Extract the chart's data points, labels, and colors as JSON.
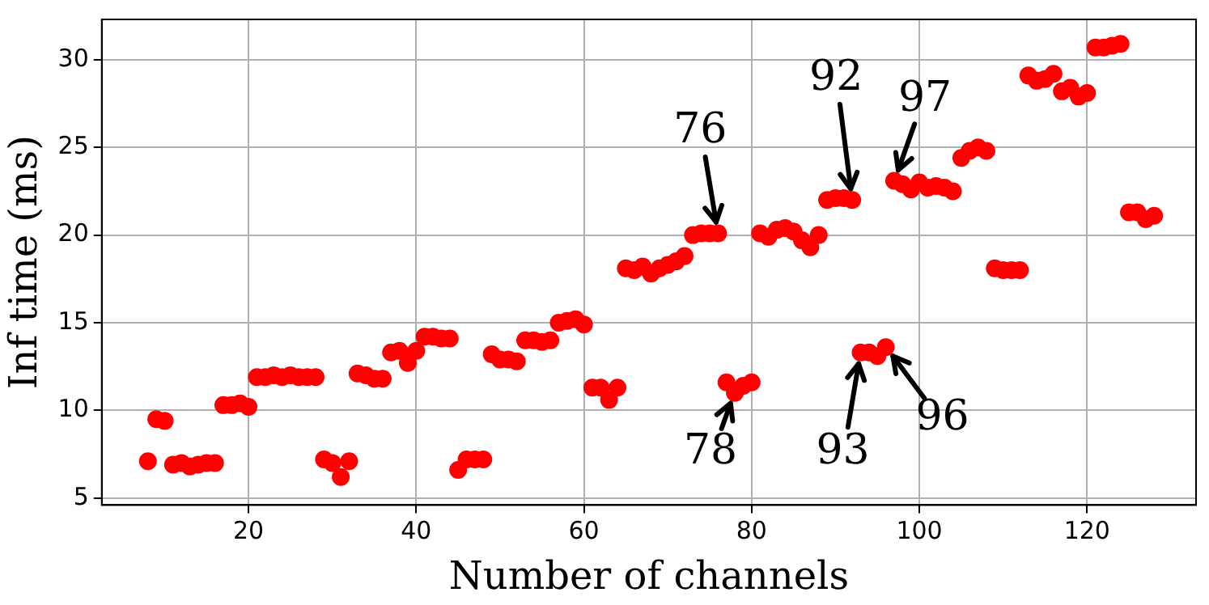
{
  "chart_data": {
    "type": "scatter",
    "xlabel": "Number of channels",
    "ylabel": "Inf time (ms)",
    "x": [
      8,
      9,
      10,
      11,
      12,
      13,
      14,
      15,
      16,
      17,
      18,
      19,
      20,
      21,
      22,
      23,
      24,
      25,
      26,
      27,
      28,
      29,
      30,
      31,
      32,
      33,
      34,
      35,
      36,
      37,
      38,
      39,
      40,
      41,
      42,
      43,
      44,
      45,
      46,
      47,
      48,
      49,
      50,
      51,
      52,
      53,
      54,
      55,
      56,
      57,
      58,
      59,
      60,
      61,
      62,
      63,
      64,
      65,
      66,
      67,
      68,
      69,
      70,
      71,
      72,
      73,
      74,
      75,
      76,
      77,
      78,
      79,
      80,
      81,
      82,
      83,
      84,
      85,
      86,
      87,
      88,
      89,
      90,
      91,
      92,
      93,
      94,
      95,
      96,
      97,
      98,
      99,
      100,
      101,
      102,
      103,
      104,
      105,
      106,
      107,
      108,
      109,
      110,
      111,
      112,
      113,
      114,
      115,
      116,
      117,
      118,
      119,
      120,
      121,
      122,
      123,
      124,
      125,
      126,
      127,
      128
    ],
    "series": [
      {
        "color": "#ff0000",
        "values": [
          7.1,
          9.5,
          9.4,
          6.9,
          7.0,
          6.8,
          6.9,
          7.0,
          7.0,
          10.3,
          10.3,
          10.4,
          10.2,
          11.9,
          11.9,
          12.0,
          11.9,
          12.0,
          11.9,
          11.9,
          11.9,
          7.2,
          7.0,
          6.2,
          7.1,
          12.1,
          12.0,
          11.8,
          11.8,
          13.3,
          13.4,
          12.7,
          13.4,
          14.2,
          14.2,
          14.1,
          14.1,
          6.6,
          7.2,
          7.2,
          7.2,
          13.2,
          12.9,
          12.9,
          12.8,
          14.0,
          14.0,
          13.9,
          14.0,
          15.0,
          15.1,
          15.2,
          14.9,
          11.3,
          11.3,
          10.6,
          11.3,
          18.1,
          18.0,
          18.2,
          17.8,
          18.1,
          18.3,
          18.5,
          18.8,
          20.0,
          20.1,
          20.1,
          20.1,
          11.6,
          11.0,
          11.4,
          11.6,
          20.1,
          19.9,
          20.3,
          20.4,
          20.2,
          19.7,
          19.3,
          20.0,
          22.0,
          22.1,
          22.1,
          22.0,
          13.3,
          13.3,
          13.1,
          13.6,
          23.1,
          22.9,
          22.6,
          23.0,
          22.7,
          22.8,
          22.7,
          22.5,
          24.4,
          24.8,
          25.0,
          24.8,
          18.1,
          18.0,
          18.0,
          18.0,
          29.1,
          28.8,
          28.9,
          29.2,
          28.2,
          28.4,
          27.9,
          28.1,
          30.7,
          30.7,
          30.8,
          30.9,
          21.3,
          21.3,
          20.9,
          21.1
        ]
      }
    ],
    "xlim": [
      2.5,
      133
    ],
    "ylim": [
      4.6,
      32.3
    ],
    "xticks": [
      20,
      40,
      60,
      80,
      100,
      120
    ],
    "yticks": [
      5,
      10,
      15,
      20,
      25,
      30
    ],
    "grid": true,
    "marker": "circle",
    "legend": false,
    "annotations": [
      {
        "text": "76",
        "x": 76,
        "y": 20.1
      },
      {
        "text": "92",
        "x": 92,
        "y": 22.0
      },
      {
        "text": "97",
        "x": 97,
        "y": 23.1
      },
      {
        "text": "78",
        "x": 78,
        "y": 11.0
      },
      {
        "text": "93",
        "x": 93,
        "y": 13.3
      },
      {
        "text": "96",
        "x": 96,
        "y": 13.6
      }
    ]
  }
}
